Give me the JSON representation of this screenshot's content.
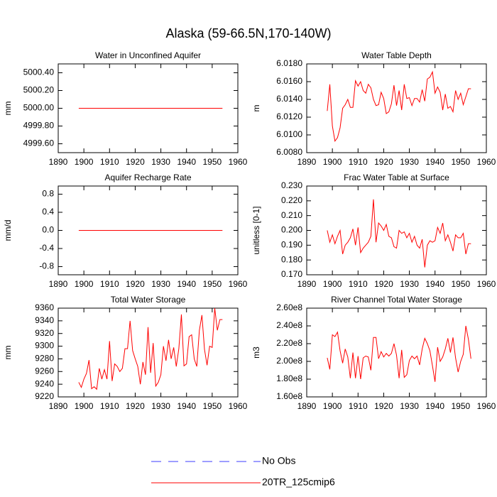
{
  "title": "Alaska (59-66.5N,170-140W)",
  "legend": [
    {
      "name": "No Obs",
      "color": "#3c3cff",
      "dash": true
    },
    {
      "name": "20TR_125cmip6",
      "color": "#ff0000",
      "dash": false
    }
  ],
  "chart_data": [
    {
      "type": "line",
      "title": "Water in Unconfined Aquifer",
      "ylabel": "mm",
      "color": "#ff0000",
      "x": [
        1898,
        1899,
        1900,
        1901,
        1902,
        1903,
        1904,
        1905,
        1906,
        1907,
        1908,
        1909,
        1910,
        1911,
        1912,
        1913,
        1914,
        1915,
        1916,
        1917,
        1918,
        1919,
        1920,
        1921,
        1922,
        1923,
        1924,
        1925,
        1926,
        1927,
        1928,
        1929,
        1930,
        1931,
        1932,
        1933,
        1934,
        1935,
        1936,
        1937,
        1938,
        1939,
        1940,
        1941,
        1942,
        1943,
        1944,
        1945,
        1946,
        1947,
        1948,
        1949,
        1950,
        1951,
        1952,
        1953,
        1954
      ],
      "values": [
        5000,
        5000,
        5000,
        5000,
        5000,
        5000,
        5000,
        5000,
        5000,
        5000,
        5000,
        5000,
        5000,
        5000,
        5000,
        5000,
        5000,
        5000,
        5000,
        5000,
        5000,
        5000,
        5000,
        5000,
        5000,
        5000,
        5000,
        5000,
        5000,
        5000,
        5000,
        5000,
        5000,
        5000,
        5000,
        5000,
        5000,
        5000,
        5000,
        5000,
        5000,
        5000,
        5000,
        5000,
        5000,
        5000,
        5000,
        5000,
        5000,
        5000,
        5000,
        5000,
        5000,
        5000,
        5000,
        5000,
        5000
      ],
      "xlim": [
        1890,
        1960
      ],
      "xticks": [
        1890,
        1900,
        1910,
        1920,
        1930,
        1940,
        1950,
        1960
      ],
      "ylim": [
        4999.5,
        5000.5
      ],
      "yticks": [
        {
          "value": 4999.6,
          "label": "4999.60"
        },
        {
          "value": 4999.8,
          "label": "4999.80"
        },
        {
          "value": 5000,
          "label": "5000.00"
        },
        {
          "value": 5000.2,
          "label": "5000.20"
        },
        {
          "value": 5000.4,
          "label": "5000.40"
        }
      ]
    },
    {
      "type": "line",
      "title": "Water Table Depth",
      "ylabel": "m",
      "color": "#ff0000",
      "x": [
        1898,
        1899,
        1900,
        1901,
        1902,
        1903,
        1904,
        1905,
        1906,
        1907,
        1908,
        1909,
        1910,
        1911,
        1912,
        1913,
        1914,
        1915,
        1916,
        1917,
        1918,
        1919,
        1920,
        1921,
        1922,
        1923,
        1924,
        1925,
        1926,
        1927,
        1928,
        1929,
        1930,
        1931,
        1932,
        1933,
        1934,
        1935,
        1936,
        1937,
        1938,
        1939,
        1940,
        1941,
        1942,
        1943,
        1944,
        1945,
        1946,
        1947,
        1948,
        1949,
        1950,
        1951,
        1952,
        1953,
        1954
      ],
      "values": [
        6.0127,
        6.0157,
        6.011,
        6.0093,
        6.0097,
        6.0108,
        6.013,
        6.0134,
        6.014,
        6.0131,
        6.0131,
        6.0161,
        6.0155,
        6.016,
        6.015,
        6.0147,
        6.0157,
        6.0153,
        6.014,
        6.0133,
        6.0134,
        6.0148,
        6.0141,
        6.0124,
        6.0126,
        6.0135,
        6.0156,
        6.0133,
        6.015,
        6.0128,
        6.0157,
        6.0141,
        6.0142,
        6.0133,
        6.0141,
        6.0141,
        6.0137,
        6.0151,
        6.0138,
        6.0163,
        6.0165,
        6.0171,
        6.0147,
        6.0154,
        6.0148,
        6.0128,
        6.0146,
        6.013,
        6.0132,
        6.0126,
        6.015,
        6.014,
        6.0147,
        6.0134,
        6.0143,
        6.0152,
        6.0152
      ],
      "xlim": [
        1890,
        1960
      ],
      "xticks": [
        1890,
        1900,
        1910,
        1920,
        1930,
        1940,
        1950,
        1960
      ],
      "ylim": [
        6.008,
        6.018
      ],
      "yticks": [
        {
          "value": 6.008,
          "label": "6.0080"
        },
        {
          "value": 6.01,
          "label": "6.0100"
        },
        {
          "value": 6.012,
          "label": "6.0120"
        },
        {
          "value": 6.014,
          "label": "6.0140"
        },
        {
          "value": 6.016,
          "label": "6.0160"
        },
        {
          "value": 6.018,
          "label": "6.0180"
        }
      ]
    },
    {
      "type": "line",
      "title": "Aquifer Recharge Rate",
      "ylabel": "mm/d",
      "color": "#ff0000",
      "x": [
        1898,
        1899,
        1900,
        1901,
        1902,
        1903,
        1904,
        1905,
        1906,
        1907,
        1908,
        1909,
        1910,
        1911,
        1912,
        1913,
        1914,
        1915,
        1916,
        1917,
        1918,
        1919,
        1920,
        1921,
        1922,
        1923,
        1924,
        1925,
        1926,
        1927,
        1928,
        1929,
        1930,
        1931,
        1932,
        1933,
        1934,
        1935,
        1936,
        1937,
        1938,
        1939,
        1940,
        1941,
        1942,
        1943,
        1944,
        1945,
        1946,
        1947,
        1948,
        1949,
        1950,
        1951,
        1952,
        1953,
        1954
      ],
      "values": [
        0,
        0,
        0,
        0,
        0,
        0,
        0,
        0,
        0,
        0,
        0,
        0,
        0,
        0,
        0,
        0,
        0,
        0,
        0,
        0,
        0,
        0,
        0,
        0,
        0,
        0,
        0,
        0,
        0,
        0,
        0,
        0,
        0,
        0,
        0,
        0,
        0,
        0,
        0,
        0,
        0,
        0,
        0,
        0,
        0,
        0,
        0,
        0,
        0,
        0,
        0,
        0,
        0,
        0,
        0,
        0,
        0
      ],
      "xlim": [
        1890,
        1960
      ],
      "xticks": [
        1890,
        1900,
        1910,
        1920,
        1930,
        1940,
        1950,
        1960
      ],
      "ylim": [
        -0.98,
        0.98
      ],
      "yticks": [
        -0.8,
        -0.4,
        {
          "value": 0,
          "label": "0.0"
        },
        0.4,
        0.8
      ]
    },
    {
      "type": "line",
      "title": "Frac Water Table at Surface",
      "ylabel": "unitless [0-1]",
      "color": "#ff0000",
      "x": [
        1898,
        1899,
        1900,
        1901,
        1902,
        1903,
        1904,
        1905,
        1906,
        1907,
        1908,
        1909,
        1910,
        1911,
        1912,
        1913,
        1914,
        1915,
        1916,
        1917,
        1918,
        1919,
        1920,
        1921,
        1922,
        1923,
        1924,
        1925,
        1926,
        1927,
        1928,
        1929,
        1930,
        1931,
        1932,
        1933,
        1934,
        1935,
        1936,
        1937,
        1938,
        1939,
        1940,
        1941,
        1942,
        1943,
        1944,
        1945,
        1946,
        1947,
        1948,
        1949,
        1950,
        1951,
        1952,
        1953,
        1954
      ],
      "values": [
        0.2,
        0.192,
        0.197,
        0.191,
        0.196,
        0.2,
        0.184,
        0.19,
        0.192,
        0.195,
        0.201,
        0.19,
        0.202,
        0.185,
        0.188,
        0.19,
        0.192,
        0.196,
        0.221,
        0.192,
        0.205,
        0.203,
        0.2,
        0.204,
        0.196,
        0.195,
        0.189,
        0.188,
        0.2,
        0.198,
        0.199,
        0.195,
        0.198,
        0.192,
        0.196,
        0.19,
        0.188,
        0.194,
        0.175,
        0.19,
        0.193,
        0.192,
        0.193,
        0.202,
        0.198,
        0.205,
        0.193,
        0.197,
        0.192,
        0.186,
        0.197,
        0.195,
        0.195,
        0.198,
        0.184,
        0.191,
        0.191
      ],
      "xlim": [
        1890,
        1960
      ],
      "xticks": [
        1890,
        1900,
        1910,
        1920,
        1930,
        1940,
        1950,
        1960
      ],
      "ylim": [
        0.17,
        0.23
      ],
      "yticks": [
        {
          "value": 0.17,
          "label": "0.170"
        },
        {
          "value": 0.18,
          "label": "0.180"
        },
        {
          "value": 0.19,
          "label": "0.190"
        },
        {
          "value": 0.2,
          "label": "0.200"
        },
        {
          "value": 0.21,
          "label": "0.210"
        },
        {
          "value": 0.22,
          "label": "0.220"
        },
        {
          "value": 0.23,
          "label": "0.230"
        }
      ]
    },
    {
      "type": "line",
      "title": "Total Water Storage",
      "ylabel": "mm",
      "color": "#ff0000",
      "x": [
        1898,
        1899,
        1900,
        1901,
        1902,
        1903,
        1904,
        1905,
        1906,
        1907,
        1908,
        1909,
        1910,
        1911,
        1912,
        1913,
        1914,
        1915,
        1916,
        1917,
        1918,
        1919,
        1920,
        1921,
        1922,
        1923,
        1924,
        1925,
        1926,
        1927,
        1928,
        1929,
        1930,
        1931,
        1932,
        1933,
        1934,
        1935,
        1936,
        1937,
        1938,
        1939,
        1940,
        1941,
        1942,
        1943,
        1944,
        1945,
        1946,
        1947,
        1948,
        1949,
        1950,
        1951,
        1952,
        1953,
        1954
      ],
      "values": [
        9243,
        9235,
        9248,
        9257,
        9278,
        9233,
        9236,
        9232,
        9265,
        9248,
        9263,
        9248,
        9308,
        9245,
        9272,
        9268,
        9260,
        9265,
        9296,
        9296,
        9340,
        9293,
        9280,
        9268,
        9240,
        9275,
        9255,
        9330,
        9258,
        9305,
        9237,
        9243,
        9255,
        9300,
        9277,
        9310,
        9280,
        9298,
        9268,
        9296,
        9350,
        9269,
        9272,
        9315,
        9318,
        9280,
        9268,
        9325,
        9349,
        9295,
        9270,
        9300,
        9298,
        9360,
        9325,
        9342,
        9342
      ],
      "xlim": [
        1890,
        1960
      ],
      "xticks": [
        1890,
        1900,
        1910,
        1920,
        1930,
        1940,
        1950,
        1960
      ],
      "ylim": [
        9220,
        9360
      ],
      "yticks": [
        9220,
        9240,
        9260,
        9280,
        9300,
        9320,
        9340,
        9360
      ]
    },
    {
      "type": "line",
      "title": "River Channel Total Water Storage",
      "ylabel": "m3",
      "color": "#ff0000",
      "x": [
        1898,
        1899,
        1900,
        1901,
        1902,
        1903,
        1904,
        1905,
        1906,
        1907,
        1908,
        1909,
        1910,
        1911,
        1912,
        1913,
        1914,
        1915,
        1916,
        1917,
        1918,
        1919,
        1920,
        1921,
        1922,
        1923,
        1924,
        1925,
        1926,
        1927,
        1928,
        1929,
        1930,
        1931,
        1932,
        1933,
        1934,
        1935,
        1936,
        1937,
        1938,
        1939,
        1940,
        1941,
        1942,
        1943,
        1944,
        1945,
        1946,
        1947,
        1948,
        1949,
        1950,
        1951,
        1952,
        1953,
        1954
      ],
      "values": [
        204000000,
        191000000,
        230000000,
        228000000,
        233000000,
        212000000,
        198000000,
        214000000,
        205000000,
        181000000,
        210000000,
        181000000,
        206000000,
        180000000,
        204000000,
        206000000,
        205000000,
        190000000,
        227000000,
        227000000,
        203000000,
        211000000,
        205000000,
        209000000,
        206000000,
        209000000,
        220000000,
        207000000,
        181000000,
        213000000,
        182000000,
        185000000,
        201000000,
        206000000,
        203000000,
        206000000,
        196000000,
        214000000,
        226000000,
        220000000,
        212000000,
        195000000,
        177000000,
        216000000,
        200000000,
        205000000,
        214000000,
        226000000,
        210000000,
        227000000,
        204000000,
        188000000,
        200000000,
        208000000,
        240000000,
        225000000,
        203000000
      ],
      "xlim": [
        1890,
        1960
      ],
      "xticks": [
        1890,
        1900,
        1910,
        1920,
        1930,
        1940,
        1950,
        1960
      ],
      "ylim": [
        160000000,
        260000000
      ],
      "yticks": [
        {
          "value": 160000000,
          "label": "1.60e8"
        },
        {
          "value": 180000000,
          "label": "1.80e8"
        },
        {
          "value": 200000000,
          "label": "2.00e8"
        },
        {
          "value": 220000000,
          "label": "2.20e8"
        },
        {
          "value": 240000000,
          "label": "2.40e8"
        },
        {
          "value": 260000000,
          "label": "2.60e8"
        }
      ]
    }
  ]
}
